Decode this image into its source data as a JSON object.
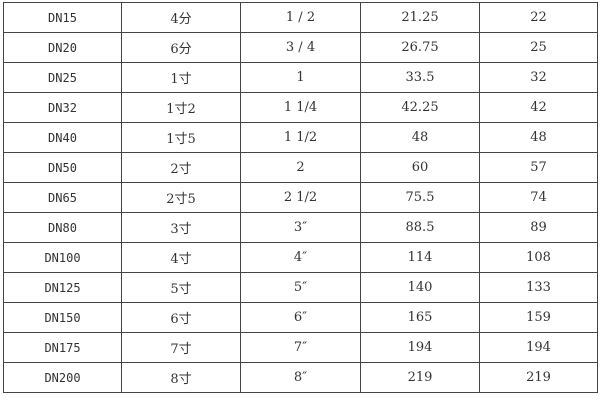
{
  "table": {
    "rows": [
      [
        "DN15",
        "4分",
        "1 / 2",
        "21.25",
        "22"
      ],
      [
        "DN20",
        "6分",
        "3 / 4",
        "26.75",
        "25"
      ],
      [
        "DN25",
        "1寸",
        "1",
        "33.5",
        "32"
      ],
      [
        "DN32",
        "1寸2",
        "1 1/4",
        "42.25",
        "42"
      ],
      [
        "DN40",
        "1寸5",
        "1 1/2",
        "48",
        "48"
      ],
      [
        "DN50",
        "2寸",
        "2",
        "60",
        "57"
      ],
      [
        "DN65",
        "2寸5",
        "2 1/2",
        "75.5",
        "74"
      ],
      [
        "DN80",
        "3寸",
        "3″",
        "88.5",
        "89"
      ],
      [
        "DN100",
        "4寸",
        "4″",
        "114",
        "108"
      ],
      [
        "DN125",
        "5寸",
        "5″",
        "140",
        "133"
      ],
      [
        "DN150",
        "6寸",
        "6″",
        "165",
        "159"
      ],
      [
        "DN175",
        "7寸",
        "7″",
        "194",
        "194"
      ],
      [
        "DN200",
        "8寸",
        "8″",
        "219",
        "219"
      ]
    ]
  }
}
